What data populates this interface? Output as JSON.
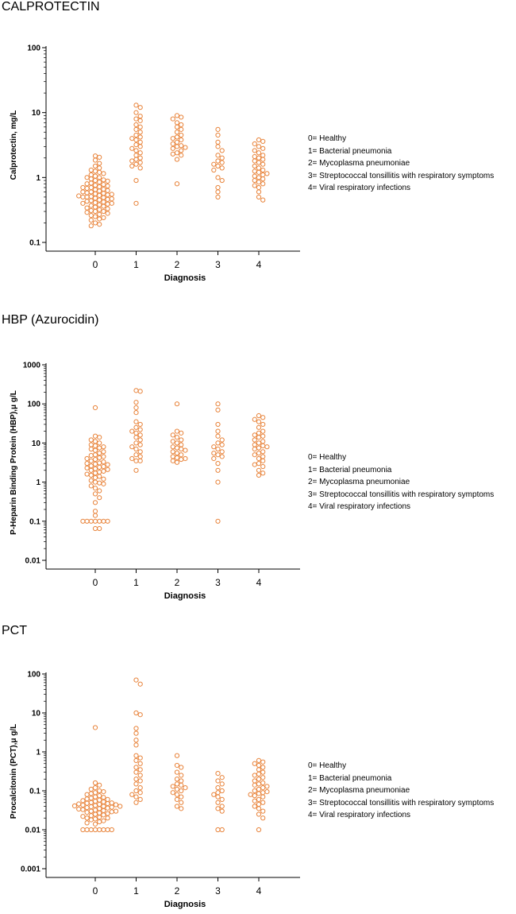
{
  "panels": [
    {
      "title": "CALPROTECTIN",
      "legend": [
        "0= Healthy",
        "1= Bacterial pneumonia",
        "2= Mycoplasma pneumoniae",
        "3= Streptococcal tonsillitis with respiratory symptoms",
        "4= Viral respiratory infections"
      ]
    },
    {
      "title": "HBP (Azurocidin)",
      "legend": [
        "0= Healthy",
        "1= Bacterial pneumonia",
        "2= Mycoplasma pneumoniae",
        "3= Streptococcal tonsillitis with respiratory symptoms",
        "4= Viral respiratory infections"
      ]
    },
    {
      "title": "PCT",
      "legend": [
        "0= Healthy",
        "1= Bacterial pneumonia",
        "2= Mycoplasma pneumoniae",
        "3= Streptococcal tonsillitis with respiratory symptoms",
        "4= Viral respiratory infections"
      ]
    }
  ],
  "chart_data": [
    {
      "type": "scatter",
      "title": "CALPROTECTIN",
      "xlabel": "Diagnosis",
      "ylabel": "Calprotectin, mg/L",
      "yscale": "log",
      "ylim": [
        0.1,
        100
      ],
      "yticks": [
        0.1,
        1,
        10,
        100
      ],
      "yticklabels": [
        "0.1",
        "1",
        "10",
        "100"
      ],
      "categories": [
        "0",
        "1",
        "2",
        "3",
        "4"
      ],
      "color": "#E8833A",
      "series": [
        {
          "name": "0",
          "values": [
            2.15,
            2.05,
            1.85,
            1.65,
            1.5,
            1.4,
            1.3,
            1.25,
            1.2,
            1.15,
            1.1,
            1.05,
            1.0,
            1.0,
            0.95,
            0.92,
            0.9,
            0.88,
            0.85,
            0.82,
            0.8,
            0.78,
            0.76,
            0.74,
            0.72,
            0.7,
            0.7,
            0.68,
            0.66,
            0.65,
            0.63,
            0.62,
            0.6,
            0.6,
            0.58,
            0.57,
            0.56,
            0.55,
            0.54,
            0.53,
            0.52,
            0.51,
            0.5,
            0.5,
            0.49,
            0.48,
            0.47,
            0.46,
            0.45,
            0.44,
            0.43,
            0.42,
            0.41,
            0.4,
            0.4,
            0.39,
            0.38,
            0.37,
            0.36,
            0.35,
            0.34,
            0.33,
            0.32,
            0.31,
            0.3,
            0.3,
            0.29,
            0.28,
            0.27,
            0.26,
            0.25,
            0.24,
            0.23,
            0.22,
            0.2,
            0.19,
            0.18
          ]
        },
        {
          "name": "1",
          "values": [
            13,
            12,
            10,
            8.8,
            8.0,
            7.5,
            6.5,
            6.0,
            5.5,
            5.0,
            4.5,
            4.2,
            4.0,
            3.8,
            3.5,
            3.2,
            3.0,
            2.8,
            2.6,
            2.4,
            2.2,
            2.0,
            1.9,
            1.8,
            1.7,
            1.6,
            1.5,
            1.4,
            0.9,
            0.4
          ]
        },
        {
          "name": "2",
          "values": [
            9.0,
            8.5,
            8.0,
            7.0,
            6.5,
            6.0,
            5.5,
            5.0,
            4.5,
            4.2,
            4.0,
            3.8,
            3.5,
            3.3,
            3.1,
            3.0,
            2.9,
            2.8,
            2.6,
            2.4,
            2.3,
            2.2,
            1.9,
            0.8
          ]
        },
        {
          "name": "3",
          "values": [
            5.5,
            4.5,
            3.5,
            3.0,
            2.6,
            2.2,
            2.0,
            1.8,
            1.7,
            1.6,
            1.5,
            1.4,
            1.3,
            1.0,
            0.9,
            0.7,
            0.6,
            0.5
          ]
        },
        {
          "name": "4",
          "values": [
            3.8,
            3.6,
            3.3,
            3.0,
            2.8,
            2.6,
            2.4,
            2.2,
            2.1,
            2.0,
            1.9,
            1.8,
            1.7,
            1.6,
            1.5,
            1.4,
            1.3,
            1.25,
            1.2,
            1.15,
            1.1,
            1.05,
            1.0,
            0.95,
            0.9,
            0.85,
            0.8,
            0.75,
            0.7,
            0.6,
            0.5,
            0.45
          ]
        }
      ]
    },
    {
      "type": "scatter",
      "title": "HBP (Azurocidin)",
      "xlabel": "Diagnosis",
      "ylabel": "P-Heparin Binding Protein (HBP),μ g/L",
      "yscale": "log",
      "ylim": [
        0.01,
        1000
      ],
      "yticks": [
        0.01,
        0.1,
        1,
        10,
        100,
        1000
      ],
      "yticklabels": [
        "0.01",
        "0.1",
        "1",
        "10",
        "100",
        "1000"
      ],
      "categories": [
        "0",
        "1",
        "2",
        "3",
        "4"
      ],
      "color": "#E8833A",
      "series": [
        {
          "name": "0",
          "values": [
            80,
            15,
            14,
            12,
            11,
            10,
            9,
            8.5,
            8,
            7.5,
            7,
            6.5,
            6,
            5.5,
            5,
            4.8,
            4.5,
            4.2,
            4,
            3.8,
            3.5,
            3.3,
            3.1,
            3,
            2.9,
            2.8,
            2.6,
            2.5,
            2.4,
            2.3,
            2.2,
            2.1,
            2,
            1.9,
            1.8,
            1.7,
            1.6,
            1.5,
            1.4,
            1.3,
            1.2,
            1.1,
            1,
            0.95,
            0.9,
            0.8,
            0.7,
            0.6,
            0.5,
            0.4,
            0.3,
            0.18,
            0.14,
            0.1,
            0.1,
            0.1,
            0.1,
            0.1,
            0.1,
            0.1,
            0.065,
            0.065
          ]
        },
        {
          "name": "1",
          "values": [
            220,
            210,
            110,
            80,
            60,
            35,
            30,
            25,
            22,
            20,
            18,
            16,
            14,
            12,
            10,
            9,
            8,
            7,
            6,
            5,
            4.5,
            4,
            3.5,
            3.5,
            2
          ]
        },
        {
          "name": "2",
          "values": [
            100,
            20,
            18,
            16,
            14,
            12,
            11,
            10,
            9,
            8,
            7.5,
            7,
            6.5,
            6,
            5.5,
            5,
            4.5,
            4.2,
            4,
            3.8,
            3.5,
            3.2
          ]
        },
        {
          "name": "3",
          "values": [
            100,
            70,
            30,
            20,
            15,
            12,
            10,
            9,
            8,
            7,
            6,
            5.5,
            5,
            4.5,
            4,
            3,
            2,
            1,
            0.1
          ]
        },
        {
          "name": "4",
          "values": [
            50,
            45,
            40,
            35,
            30,
            25,
            20,
            18,
            16,
            15,
            14,
            12,
            11,
            10,
            9,
            8.5,
            8,
            7.5,
            7,
            6,
            5.5,
            5,
            4.5,
            4,
            3.5,
            3,
            2.8,
            2.5,
            2,
            1.7,
            1.5
          ]
        }
      ]
    },
    {
      "type": "scatter",
      "title": "PCT",
      "xlabel": "Diagnosis",
      "ylabel": "Procalcitonin (PCT),μ g/L",
      "yscale": "log",
      "ylim": [
        0.001,
        100
      ],
      "yticks": [
        0.001,
        0.01,
        0.1,
        1,
        10,
        100
      ],
      "yticklabels": [
        "0.001",
        "0.01",
        "0.1",
        "1",
        "10",
        "100"
      ],
      "categories": [
        "0",
        "1",
        "2",
        "3",
        "4"
      ],
      "color": "#E8833A",
      "series": [
        {
          "name": "0",
          "values": [
            4.2,
            0.16,
            0.14,
            0.12,
            0.11,
            0.1,
            0.095,
            0.09,
            0.085,
            0.08,
            0.075,
            0.07,
            0.068,
            0.065,
            0.062,
            0.06,
            0.058,
            0.056,
            0.054,
            0.052,
            0.05,
            0.049,
            0.048,
            0.047,
            0.046,
            0.045,
            0.044,
            0.043,
            0.042,
            0.041,
            0.04,
            0.04,
            0.039,
            0.038,
            0.037,
            0.036,
            0.035,
            0.034,
            0.033,
            0.032,
            0.031,
            0.03,
            0.03,
            0.029,
            0.028,
            0.027,
            0.026,
            0.025,
            0.024,
            0.023,
            0.022,
            0.021,
            0.02,
            0.02,
            0.019,
            0.018,
            0.017,
            0.016,
            0.015,
            0.014,
            0.01,
            0.01,
            0.01,
            0.01,
            0.01,
            0.01,
            0.01,
            0.01
          ]
        },
        {
          "name": "1",
          "values": [
            70,
            55,
            10,
            9,
            4,
            3,
            2,
            1.5,
            0.8,
            0.7,
            0.6,
            0.5,
            0.4,
            0.35,
            0.3,
            0.25,
            0.2,
            0.18,
            0.15,
            0.12,
            0.1,
            0.09,
            0.08,
            0.07,
            0.06,
            0.05
          ]
        },
        {
          "name": "2",
          "values": [
            0.8,
            0.45,
            0.4,
            0.3,
            0.25,
            0.2,
            0.18,
            0.15,
            0.14,
            0.13,
            0.12,
            0.11,
            0.1,
            0.09,
            0.08,
            0.07,
            0.06,
            0.05,
            0.04,
            0.035
          ]
        },
        {
          "name": "3",
          "values": [
            0.28,
            0.22,
            0.18,
            0.15,
            0.12,
            0.1,
            0.09,
            0.08,
            0.07,
            0.06,
            0.05,
            0.04,
            0.035,
            0.03,
            0.01,
            0.01
          ]
        },
        {
          "name": "4",
          "values": [
            0.6,
            0.55,
            0.5,
            0.45,
            0.4,
            0.35,
            0.3,
            0.27,
            0.25,
            0.22,
            0.2,
            0.18,
            0.16,
            0.15,
            0.14,
            0.13,
            0.12,
            0.11,
            0.1,
            0.095,
            0.09,
            0.085,
            0.08,
            0.075,
            0.07,
            0.06,
            0.055,
            0.05,
            0.045,
            0.04,
            0.035,
            0.03,
            0.025,
            0.02,
            0.01
          ]
        }
      ]
    }
  ]
}
